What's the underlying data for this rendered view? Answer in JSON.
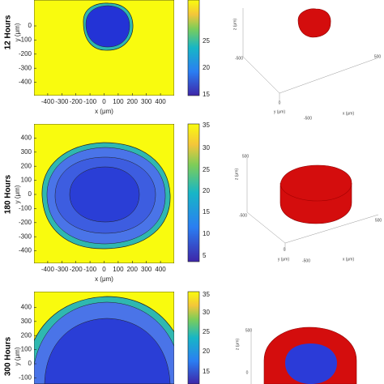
{
  "panels": [
    {
      "row_label": "12 Hours",
      "contour": {
        "xlabel": "x (μm)",
        "ylabel": "y (μm)",
        "xticks": [
          -400,
          -300,
          -200,
          -100,
          0,
          100,
          200,
          300,
          400
        ],
        "yticks": [
          0,
          -100,
          -200,
          -300,
          -400
        ]
      },
      "colorbar": {
        "ticks": [
          25,
          20,
          15
        ]
      },
      "render3d": {
        "labels": [
          "z (μm)",
          "-500",
          "500",
          "0",
          "-500",
          "y (μm)",
          "x (μm)"
        ]
      }
    },
    {
      "row_label": "180 Hours",
      "contour": {
        "xlabel": "x (μm)",
        "ylabel": "y (μm)",
        "xticks": [
          -400,
          -300,
          -200,
          -100,
          0,
          100,
          200,
          300,
          400
        ],
        "yticks": [
          400,
          300,
          200,
          100,
          0,
          -100,
          -200,
          -300,
          -400
        ]
      },
      "colorbar": {
        "ticks": [
          35,
          30,
          25,
          20,
          15,
          10,
          5
        ]
      },
      "render3d": {
        "labels": [
          "500",
          "z (μm)",
          "-500",
          "500",
          "0",
          "y (μm)",
          "-500",
          "x (μm)"
        ]
      }
    },
    {
      "row_label": "300 Hours",
      "contour": {
        "ylabel": "y (μm)",
        "yticks": [
          400,
          300,
          200,
          100,
          0,
          -100
        ]
      },
      "colorbar": {
        "ticks": [
          35,
          30,
          25,
          20,
          15
        ]
      },
      "render3d": {
        "labels": [
          "500",
          "z (μm)",
          "0"
        ]
      }
    }
  ]
}
